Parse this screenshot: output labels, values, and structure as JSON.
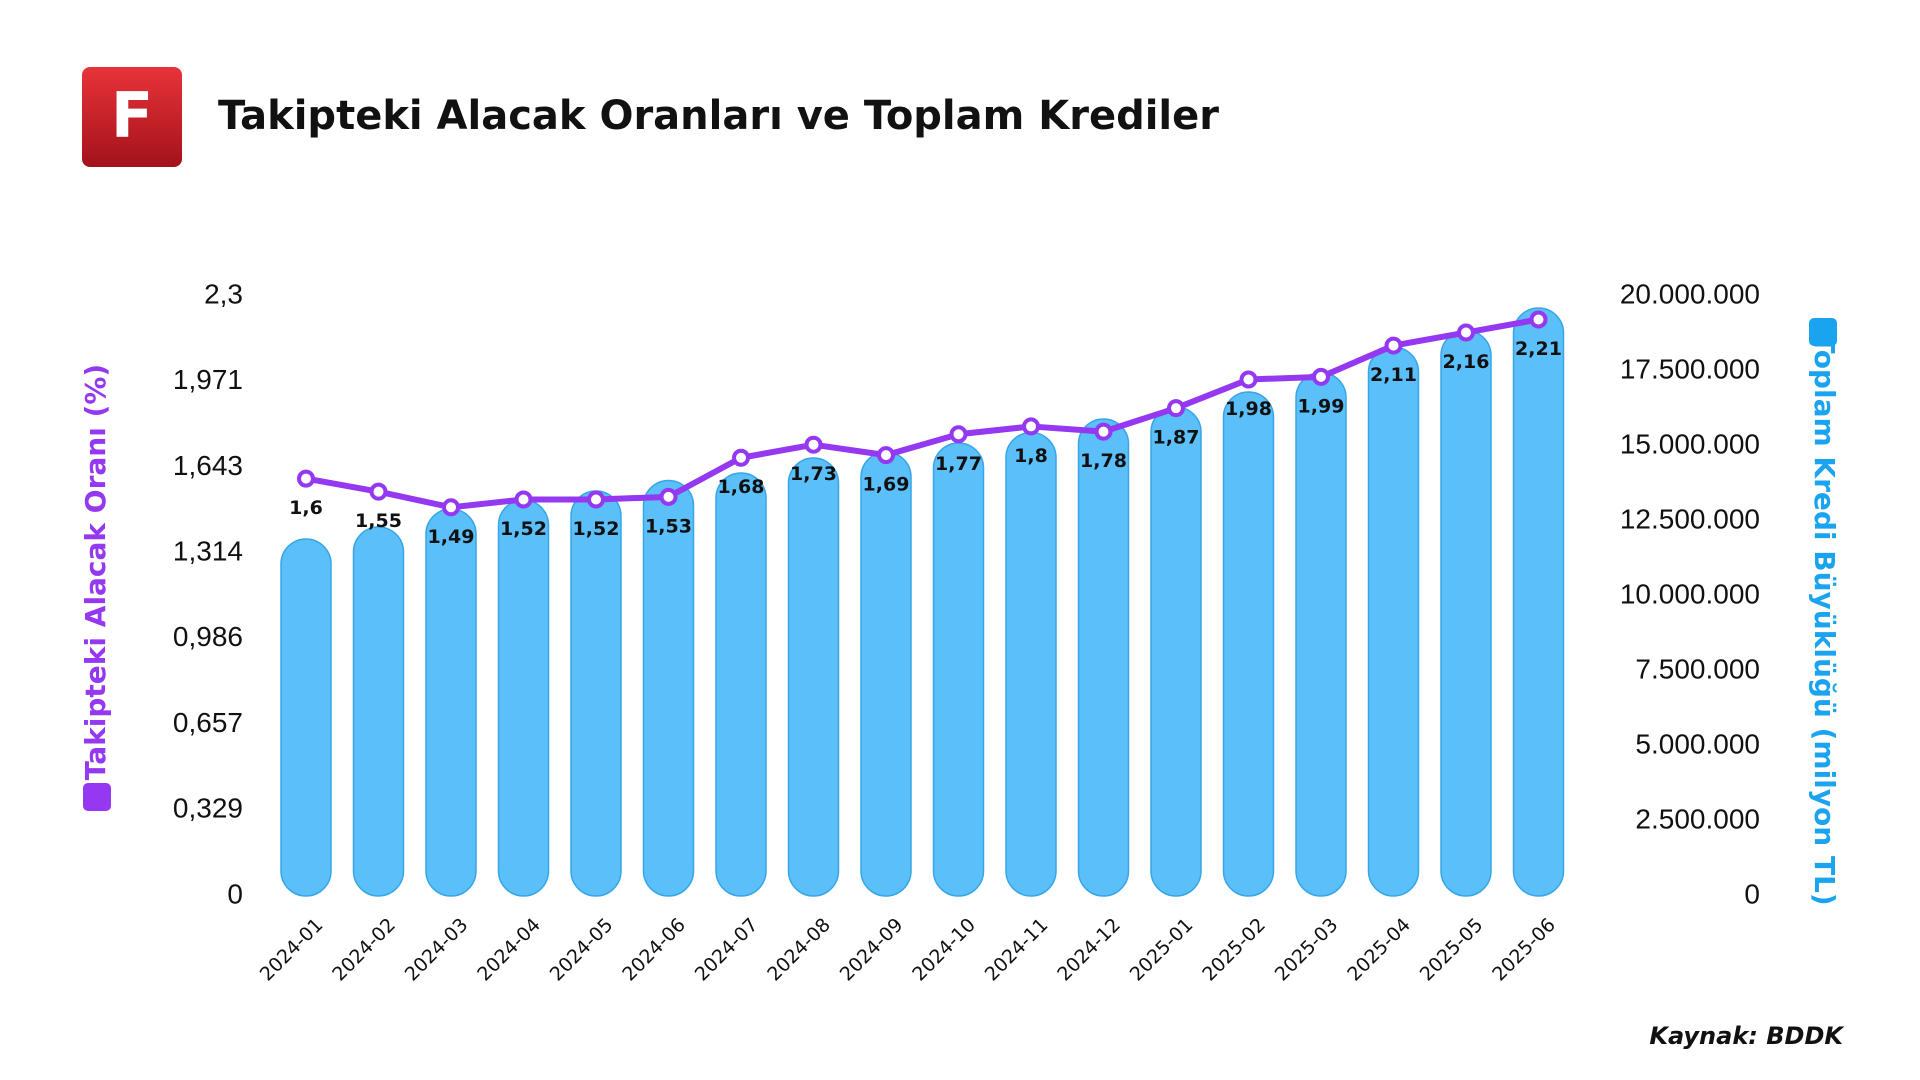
{
  "logo": "F",
  "chart_data": {
    "type": "bar-line",
    "title": "Takipteki Alacak Oranları ve Toplam Krediler",
    "source": "Kaynak: BDDK",
    "categories": [
      "2024-01",
      "2024-02",
      "2024-03",
      "2024-04",
      "2024-05",
      "2024-06",
      "2024-07",
      "2024-08",
      "2024-09",
      "2024-10",
      "2024-11",
      "2024-12",
      "2025-01",
      "2025-02",
      "2025-03",
      "2025-04",
      "2025-05",
      "2025-06"
    ],
    "series": [
      {
        "name": "Toplam Kredi Büyüklüğü (milyon TL)",
        "type": "bar",
        "axis": "y2",
        "color": "#5bbffa",
        "values": [
          11900000,
          12300000,
          12900000,
          13200000,
          13500000,
          13850000,
          14100000,
          14600000,
          14800000,
          15100000,
          15450000,
          15900000,
          16300000,
          16800000,
          17450000,
          18300000,
          18850000,
          19600000
        ]
      },
      {
        "name": "Takipteki Alacak Oranı (%)",
        "type": "line",
        "axis": "y",
        "color": "#9438f2",
        "values": [
          1.6,
          1.55,
          1.49,
          1.52,
          1.52,
          1.53,
          1.68,
          1.73,
          1.69,
          1.77,
          1.8,
          1.78,
          1.87,
          1.98,
          1.99,
          2.11,
          2.16,
          2.21
        ],
        "value_labels": [
          "1,6",
          "1,55",
          "1,49",
          "1,52",
          "1,52",
          "1,53",
          "1,68",
          "1,73",
          "1,69",
          "1,77",
          "1,8",
          "1,78",
          "1,87",
          "1,98",
          "1,99",
          "2,11",
          "2,16",
          "2,21"
        ]
      }
    ],
    "ylim": [
      0,
      2.3
    ],
    "yticks": [
      0,
      {
        "value": 0.329,
        "label": "0,329"
      },
      {
        "value": 0.657,
        "label": "0,657"
      },
      {
        "value": 0.986,
        "label": "0,986"
      },
      {
        "value": 1.314,
        "label": "1,314"
      },
      {
        "value": 1.643,
        "label": "1,643"
      },
      {
        "value": 1.971,
        "label": "1,971"
      },
      {
        "value": 2.3,
        "label": "2,3"
      }
    ],
    "y2lim": [
      0,
      20000000
    ],
    "y2ticks": [
      0,
      {
        "value": 2500000,
        "label": "2.500.000"
      },
      {
        "value": 5000000,
        "label": "5.000.000"
      },
      {
        "value": 7500000,
        "label": "7.500.000"
      },
      {
        "value": 10000000,
        "label": "10.000.000"
      },
      {
        "value": 12500000,
        "label": "12.500.000"
      },
      {
        "value": 15000000,
        "label": "15.000.000"
      },
      {
        "value": 17500000,
        "label": "17.500.000"
      },
      {
        "value": 20000000,
        "label": "20.000.000"
      }
    ],
    "grid": false
  }
}
